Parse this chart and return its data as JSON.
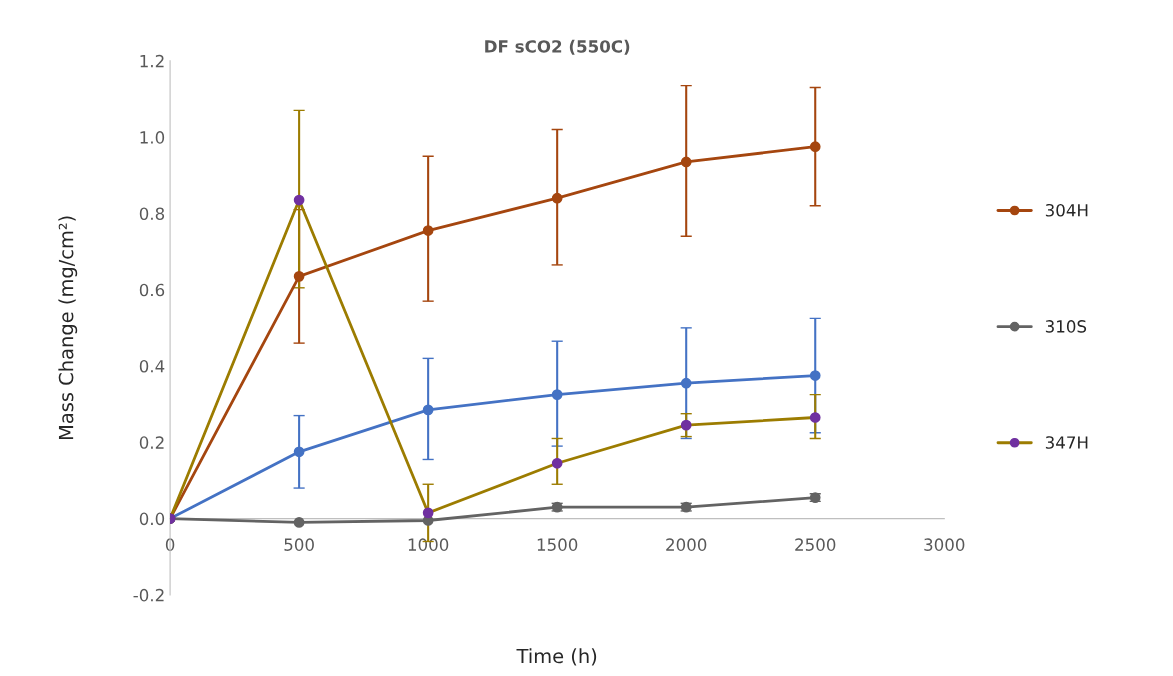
{
  "chart_data": {
    "type": "line",
    "title": "DF sCO2 (550C)",
    "xlabel": "Time (h)",
    "ylabel": "Mass Change (mg/cm²)",
    "x": [
      0,
      500,
      1000,
      1500,
      2000,
      2500
    ],
    "xlim": [
      0,
      3000
    ],
    "xticks": [
      0,
      500,
      1000,
      1500,
      2000,
      2500,
      3000
    ],
    "ylim": [
      -0.2,
      1.2
    ],
    "yticks": [
      {
        "value": -0.2,
        "label": "-0.2"
      },
      {
        "value": 0,
        "label": "0.0"
      },
      {
        "value": 0.2,
        "label": "0.2"
      },
      {
        "value": 0.4,
        "label": "0.4"
      },
      {
        "value": 0.6,
        "label": "0.6"
      },
      {
        "value": 0.8,
        "label": "0.8"
      },
      {
        "value": 1.0,
        "label": "1.0"
      },
      {
        "value": 1.2,
        "label": "1.2"
      }
    ],
    "grid": false,
    "legend": "right",
    "marker": "circle",
    "line_style": "solid",
    "series": [
      {
        "color": "#4472c4",
        "values": [
          0,
          0.175,
          0.285,
          0.325,
          0.355,
          0.375
        ],
        "errors": [
          null,
          [
            0.08,
            0.27
          ],
          [
            0.155,
            0.42
          ],
          [
            0.19,
            0.465
          ],
          [
            0.21,
            0.5
          ],
          [
            0.225,
            0.525
          ]
        ]
      },
      {
        "name": "304H",
        "color": "#a5460f",
        "values": [
          0,
          0.635,
          0.755,
          0.84,
          0.935,
          0.975
        ],
        "errors": [
          null,
          [
            0.46,
            0.81
          ],
          [
            0.57,
            0.95
          ],
          [
            0.665,
            1.02
          ],
          [
            0.74,
            1.135
          ],
          [
            0.82,
            1.13
          ]
        ]
      },
      {
        "name": "310S",
        "color": "#636363",
        "values": [
          0,
          -0.01,
          -0.005,
          0.03,
          0.03,
          0.055
        ],
        "errors": [
          null,
          null,
          null,
          [
            0.02,
            0.04
          ],
          [
            0.02,
            0.04
          ],
          [
            0.045,
            0.065
          ]
        ]
      },
      {
        "name": "347H",
        "color": "#9c7c00",
        "colors": [
          "#7030a0",
          "#7030a0",
          "#7030a0",
          "#7030a0",
          "#7030a0",
          "#7030a0"
        ],
        "values": [
          0,
          0.835,
          0.015,
          0.145,
          0.245,
          0.265
        ],
        "errors": [
          null,
          [
            0.605,
            1.07
          ],
          [
            -0.06,
            0.09
          ],
          [
            0.09,
            0.21
          ],
          [
            0.215,
            0.275
          ],
          [
            0.21,
            0.325
          ]
        ]
      }
    ]
  }
}
